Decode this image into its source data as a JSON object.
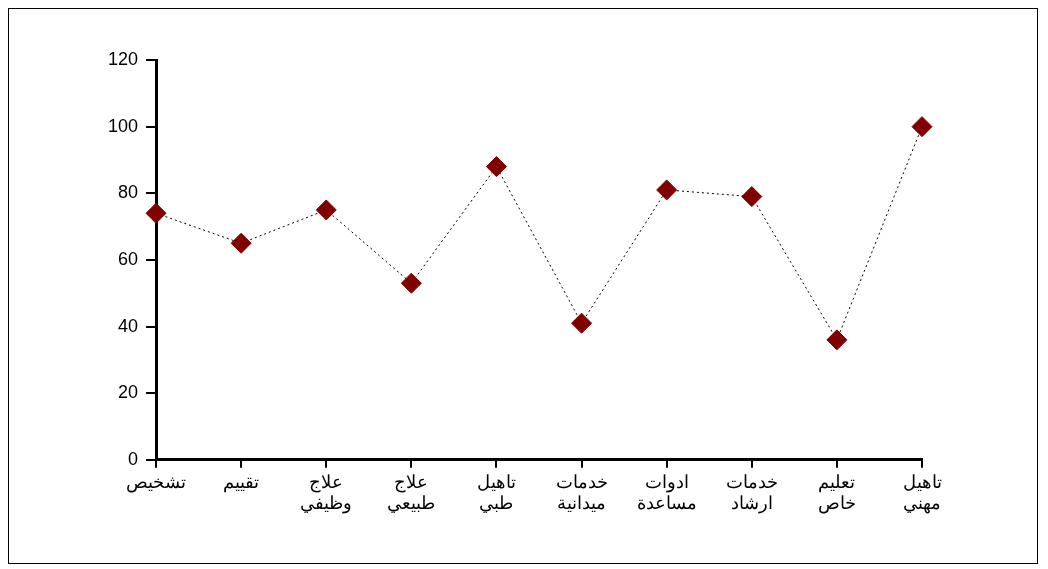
{
  "chart_data": {
    "type": "line",
    "categories": [
      "تشخيص",
      "تقييم",
      "علاج وظيفي",
      "علاج طبيعي",
      "تاهيل طبي",
      "خدمات ميدانية",
      "ادوات مساعدة",
      "خدمات ارشاد",
      "تعليم خاص",
      "تاهيل مهني"
    ],
    "series": [
      {
        "color": "#800000",
        "values": [
          74,
          65,
          75,
          53,
          88,
          41,
          81,
          79,
          36,
          100
        ]
      }
    ],
    "ylim": [
      0,
      120
    ],
    "yticks": [
      0,
      20,
      40,
      60,
      80,
      100,
      120
    ],
    "marker": "diamond",
    "line_style": "dotted"
  }
}
